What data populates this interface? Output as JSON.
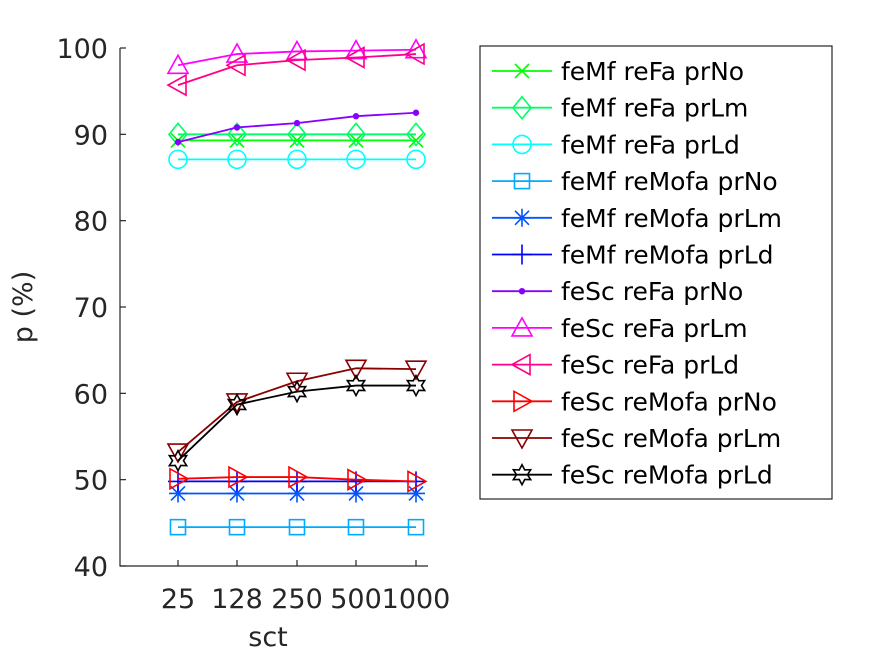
{
  "chart_data": {
    "type": "line",
    "xlabel": "sct",
    "ylabel": "p (%)",
    "categories": [
      "25",
      "128",
      "250",
      "500",
      "1000"
    ],
    "ylim": [
      40,
      100
    ],
    "yticks": [
      40,
      50,
      60,
      70,
      80,
      90,
      100
    ],
    "grid": false,
    "legend_position": "right",
    "series": [
      {
        "name": "feMf reFa prNo",
        "color": "#00ff00",
        "marker": "x",
        "values": [
          89.3,
          89.3,
          89.3,
          89.3,
          89.3
        ]
      },
      {
        "name": "feMf reFa prLm",
        "color": "#00ff66",
        "marker": "diamond",
        "values": [
          90.0,
          90.0,
          90.0,
          90.0,
          90.0
        ]
      },
      {
        "name": "feMf reFa prLd",
        "color": "#00ffff",
        "marker": "circle",
        "values": [
          87.1,
          87.1,
          87.1,
          87.1,
          87.1
        ]
      },
      {
        "name": "feMf reMofa prNo",
        "color": "#00aaff",
        "marker": "square",
        "values": [
          44.5,
          44.5,
          44.5,
          44.5,
          44.5
        ]
      },
      {
        "name": "feMf reMofa prLm",
        "color": "#0055ff",
        "marker": "asterisk",
        "values": [
          48.4,
          48.4,
          48.4,
          48.4,
          48.4
        ]
      },
      {
        "name": "feMf reMofa prLd",
        "color": "#0000ff",
        "marker": "plus",
        "values": [
          49.8,
          49.8,
          49.8,
          49.8,
          49.8
        ]
      },
      {
        "name": "feSc reFa prNo",
        "color": "#8800ff",
        "marker": "dot",
        "values": [
          89.1,
          90.8,
          91.3,
          92.1,
          92.5
        ]
      },
      {
        "name": "feSc reFa prLm",
        "color": "#ff00ff",
        "marker": "triangle-up",
        "values": [
          98.0,
          99.3,
          99.6,
          99.7,
          99.8
        ]
      },
      {
        "name": "feSc reFa prLd",
        "color": "#ff0088",
        "marker": "triangle-left",
        "values": [
          95.7,
          98.0,
          98.6,
          98.9,
          99.3
        ]
      },
      {
        "name": "feSc reMofa prNo",
        "color": "#ff0000",
        "marker": "triangle-right",
        "values": [
          50.1,
          50.3,
          50.3,
          50.0,
          49.8
        ]
      },
      {
        "name": "feSc reMofa prLm",
        "color": "#880000",
        "marker": "triangle-down",
        "values": [
          53.2,
          59.0,
          61.4,
          62.9,
          62.8
        ]
      },
      {
        "name": "feSc reMofa prLd",
        "color": "#000000",
        "marker": "hexagram",
        "values": [
          52.2,
          58.7,
          60.2,
          60.9,
          60.9
        ]
      }
    ]
  }
}
